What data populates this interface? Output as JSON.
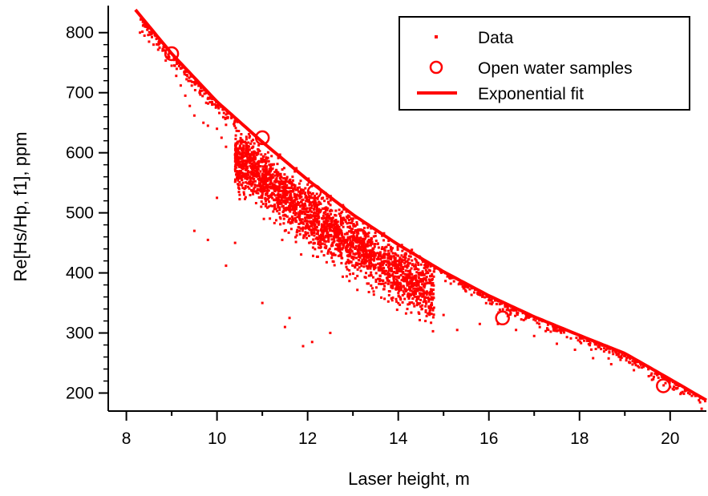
{
  "colors": {
    "series": "#ff0000",
    "axis": "#000000",
    "background": "#ffffff"
  },
  "chart_data": {
    "type": "scatter",
    "xlabel": "Laser height, m",
    "ylabel": "Re[Hs/Hp, f1], ppm",
    "xlim": [
      7.6,
      20.8
    ],
    "ylim": [
      170,
      845
    ],
    "xticks": [
      "8",
      "10",
      "12",
      "14",
      "16",
      "18",
      "20"
    ],
    "yticks": [
      "200",
      "300",
      "400",
      "500",
      "600",
      "700",
      "800"
    ],
    "grid": false,
    "legend_position": "top-right",
    "legend": [
      {
        "label": "Data",
        "marker": "dot"
      },
      {
        "label": "Open water samples",
        "marker": "open-circle"
      },
      {
        "label": "Exponential fit",
        "marker": "line"
      }
    ],
    "series": [
      {
        "name": "Data",
        "style": "dots",
        "points": [
          [
            8.3,
            800
          ],
          [
            8.4,
            795
          ],
          [
            8.5,
            785
          ],
          [
            8.6,
            780
          ],
          [
            8.8,
            770
          ],
          [
            9.0,
            745
          ],
          [
            9.1,
            728
          ],
          [
            9.2,
            712
          ],
          [
            9.3,
            695
          ],
          [
            9.4,
            678
          ],
          [
            9.5,
            662
          ],
          [
            9.7,
            650
          ],
          [
            9.8,
            645
          ],
          [
            10.0,
            640
          ],
          [
            10.1,
            625
          ],
          [
            10.2,
            610
          ],
          [
            9.5,
            470
          ],
          [
            9.8,
            455
          ],
          [
            10.2,
            412
          ],
          [
            10.4,
            450
          ],
          [
            10.0,
            525
          ],
          [
            10.5,
            530
          ],
          [
            11.0,
            350
          ],
          [
            11.5,
            310
          ],
          [
            11.9,
            278
          ],
          [
            12.1,
            285
          ],
          [
            11.6,
            325
          ],
          [
            12.5,
            300
          ],
          [
            14.2,
            340
          ],
          [
            14.6,
            320
          ],
          [
            15.0,
            330
          ],
          [
            15.3,
            305
          ],
          [
            15.8,
            315
          ],
          [
            16.2,
            315
          ],
          [
            16.6,
            305
          ],
          [
            17.0,
            295
          ],
          [
            17.5,
            282
          ],
          [
            17.9,
            272
          ],
          [
            18.3,
            258
          ],
          [
            18.7,
            248
          ],
          [
            19.2,
            238
          ],
          [
            19.6,
            222
          ],
          [
            20.0,
            210
          ],
          [
            20.4,
            200
          ],
          [
            20.7,
            192
          ]
        ]
      },
      {
        "name": "Open water samples",
        "style": "open-circles",
        "x": [
          9.0,
          11.0,
          12.15,
          13.15,
          16.3,
          19.85
        ],
        "y": [
          765,
          625,
          535,
          462,
          325,
          212
        ]
      },
      {
        "name": "Exponential fit",
        "style": "line",
        "x": [
          8.2,
          9.0,
          10.0,
          11.0,
          12.0,
          13.0,
          14.0,
          15.0,
          16.0,
          17.0,
          18.0,
          19.0,
          20.0,
          20.8
        ],
        "y": [
          838,
          765,
          685,
          618,
          555,
          497,
          447,
          402,
          362,
          327,
          296,
          266,
          223,
          188
        ]
      }
    ]
  }
}
